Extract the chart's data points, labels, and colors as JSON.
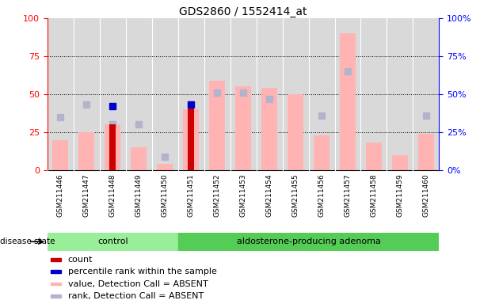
{
  "title": "GDS2860 / 1552414_at",
  "samples": [
    "GSM211446",
    "GSM211447",
    "GSM211448",
    "GSM211449",
    "GSM211450",
    "GSM211451",
    "GSM211452",
    "GSM211453",
    "GSM211454",
    "GSM211455",
    "GSM211456",
    "GSM211457",
    "GSM211458",
    "GSM211459",
    "GSM211460"
  ],
  "value_absent": [
    20,
    25,
    30,
    15,
    4,
    40,
    59,
    55,
    54,
    50,
    23,
    90,
    18,
    10,
    24
  ],
  "rank_absent": [
    35,
    43,
    30,
    30,
    9,
    null,
    51,
    51,
    47,
    null,
    36,
    65,
    null,
    null,
    36
  ],
  "count": [
    null,
    null,
    30,
    null,
    null,
    42,
    null,
    null,
    null,
    null,
    null,
    null,
    null,
    null,
    null
  ],
  "percentile_rank": [
    null,
    null,
    42,
    null,
    null,
    43,
    null,
    null,
    null,
    null,
    null,
    null,
    null,
    null,
    null
  ],
  "n_control": 5,
  "n_adenoma": 10,
  "color_value_absent": "#ffb3b3",
  "color_rank_absent": "#b3b3cc",
  "color_count": "#cc0000",
  "color_percentile": "#0000cc",
  "ylim": [
    0,
    100
  ],
  "yticks": [
    0,
    25,
    50,
    75,
    100
  ],
  "bg_plot": "#d9d9d9",
  "bg_control": "#99ee99",
  "bg_adenoma": "#55cc55",
  "control_label": "control",
  "adenoma_label": "aldosterone-producing adenoma",
  "disease_state_label": "disease state",
  "legend_items": [
    {
      "label": "count",
      "color": "#cc0000"
    },
    {
      "label": "percentile rank within the sample",
      "color": "#0000cc"
    },
    {
      "label": "value, Detection Call = ABSENT",
      "color": "#ffb3b3"
    },
    {
      "label": "rank, Detection Call = ABSENT",
      "color": "#b3b3cc"
    }
  ]
}
